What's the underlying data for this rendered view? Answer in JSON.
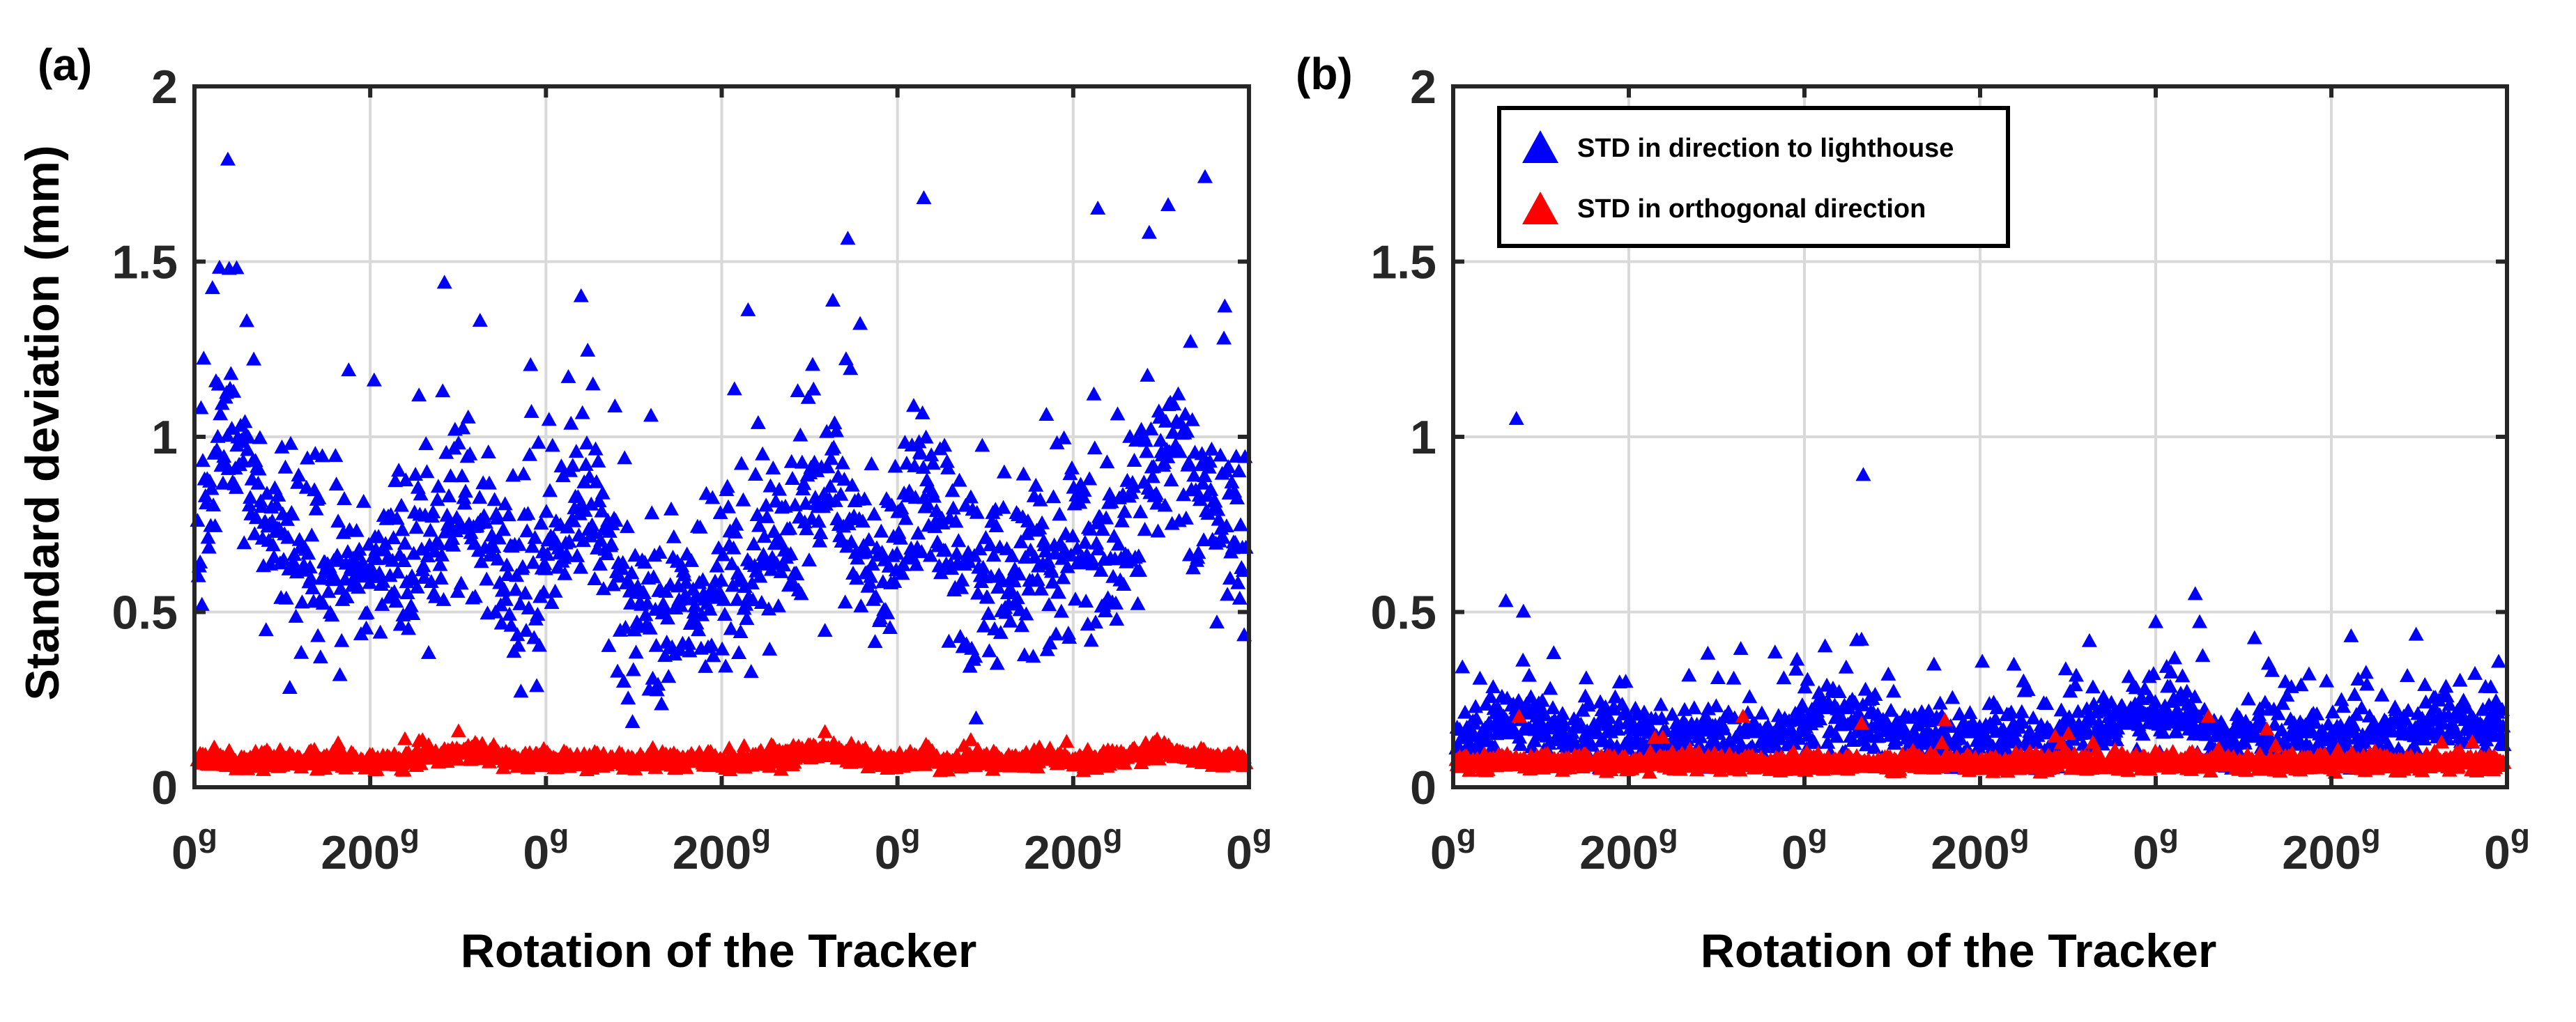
{
  "colors": {
    "blue": "#0000ff",
    "red": "#ff0000",
    "axis": "#262626",
    "grid": "#d9d9d9",
    "legend_border": "#000000"
  },
  "shared": {
    "ylabel": "Standard deviation (mm)",
    "xlabel": "Rotation of the Tracker",
    "y_ticks": [
      "0",
      "0.5",
      "1",
      "1.5",
      "2"
    ],
    "x_ticks": [
      "0",
      "200",
      "0",
      "200",
      "0",
      "200",
      "0"
    ],
    "x_tick_superscript": "g"
  },
  "legend": {
    "series_1": "STD in direction to lighthouse",
    "series_2": "STD in orthogonal direction"
  },
  "chart_data": [
    {
      "panel_label": "(a)",
      "type": "scatter",
      "marker": "triangle",
      "xlim": [
        0,
        1200
      ],
      "ylim": [
        0,
        2
      ],
      "x_grid_values": [
        0,
        200,
        400,
        600,
        800,
        1000,
        1200
      ],
      "y_grid_values": [
        0,
        0.5,
        1,
        1.5,
        2
      ],
      "n_points": 1200,
      "series": [
        {
          "name": "STD in direction to lighthouse",
          "color": "#0000ff",
          "baseline": 0.55,
          "spread": 0.13,
          "bumps": [
            {
              "x": 40,
              "h": 0.45,
              "w": 25
            },
            {
              "x": 100,
              "h": 0.12,
              "w": 30
            },
            {
              "x": 165,
              "h": 0.05,
              "w": 40
            },
            {
              "x": 250,
              "h": 0.08,
              "w": 40
            },
            {
              "x": 310,
              "h": 0.22,
              "w": 30
            },
            {
              "x": 440,
              "h": 0.3,
              "w": 25
            },
            {
              "x": 530,
              "h": -0.05,
              "w": 40
            },
            {
              "x": 640,
              "h": 0.08,
              "w": 40
            },
            {
              "x": 720,
              "h": 0.25,
              "w": 30
            },
            {
              "x": 830,
              "h": 0.3,
              "w": 25
            },
            {
              "x": 900,
              "h": 0.02,
              "w": 40
            },
            {
              "x": 990,
              "h": 0.12,
              "w": 40
            },
            {
              "x": 1100,
              "h": 0.4,
              "w": 30
            },
            {
              "x": 1170,
              "h": 0.2,
              "w": 25
            }
          ],
          "outlier_rate": 0.05,
          "outlier_range": [
            0.2,
            0.6
          ],
          "ymin": 0.18,
          "named_outliers": [
            {
              "x": 38,
              "y": 1.79
            },
            {
              "x": 48,
              "y": 1.48
            },
            {
              "x": 830,
              "y": 1.68
            },
            {
              "x": 1150,
              "y": 1.74
            },
            {
              "x": 1028,
              "y": 1.65
            },
            {
              "x": 1108,
              "y": 1.66
            },
            {
              "x": 325,
              "y": 1.33
            },
            {
              "x": 440,
              "y": 1.4
            },
            {
              "x": 630,
              "y": 1.36
            }
          ],
          "seed": 11
        },
        {
          "name": "STD in orthogonal direction",
          "color": "#ff0000",
          "baseline": 0.075,
          "spread": 0.012,
          "bumps": [
            {
              "x": 310,
              "h": 0.025,
              "w": 30
            },
            {
              "x": 720,
              "h": 0.025,
              "w": 30
            },
            {
              "x": 1100,
              "h": 0.03,
              "w": 30
            }
          ],
          "outlier_rate": 0.02,
          "outlier_range": [
            0.02,
            0.05
          ],
          "ymin": 0.045,
          "named_outliers": [],
          "seed": 23
        }
      ]
    },
    {
      "panel_label": "(b)",
      "type": "scatter",
      "marker": "triangle",
      "xlim": [
        0,
        1200
      ],
      "ylim": [
        0,
        2
      ],
      "x_grid_values": [
        0,
        200,
        400,
        600,
        800,
        1000,
        1200
      ],
      "y_grid_values": [
        0,
        0.5,
        1,
        1.5,
        2
      ],
      "n_points": 1200,
      "series": [
        {
          "name": "STD in direction to lighthouse",
          "color": "#0000ff",
          "baseline": 0.14,
          "spread": 0.045,
          "bumps": [
            {
              "x": 80,
              "h": 0.05,
              "w": 30
            },
            {
              "x": 430,
              "h": 0.05,
              "w": 40
            },
            {
              "x": 790,
              "h": 0.08,
              "w": 40
            },
            {
              "x": 1150,
              "h": 0.05,
              "w": 40
            }
          ],
          "outlier_rate": 0.07,
          "outlier_range": [
            0.06,
            0.22
          ],
          "ymin": 0.05,
          "named_outliers": [
            {
              "x": 72,
              "y": 1.05
            },
            {
              "x": 467,
              "y": 0.89
            },
            {
              "x": 845,
              "y": 0.55
            },
            {
              "x": 60,
              "y": 0.53
            },
            {
              "x": 80,
              "y": 0.5
            },
            {
              "x": 850,
              "y": 0.47
            },
            {
              "x": 465,
              "y": 0.42
            },
            {
              "x": 800,
              "y": 0.47
            },
            {
              "x": 290,
              "y": 0.38
            }
          ],
          "seed": 37
        },
        {
          "name": "STD in orthogonal direction",
          "color": "#ff0000",
          "baseline": 0.07,
          "spread": 0.012,
          "bumps": [],
          "outlier_rate": 0.02,
          "outlier_range": [
            0.02,
            0.1
          ],
          "ymin": 0.04,
          "named_outliers": [
            {
              "x": 75,
              "y": 0.2
            },
            {
              "x": 465,
              "y": 0.18
            },
            {
              "x": 860,
              "y": 0.2
            },
            {
              "x": 330,
              "y": 0.2
            },
            {
              "x": 560,
              "y": 0.19
            }
          ],
          "seed": 53
        }
      ]
    }
  ]
}
